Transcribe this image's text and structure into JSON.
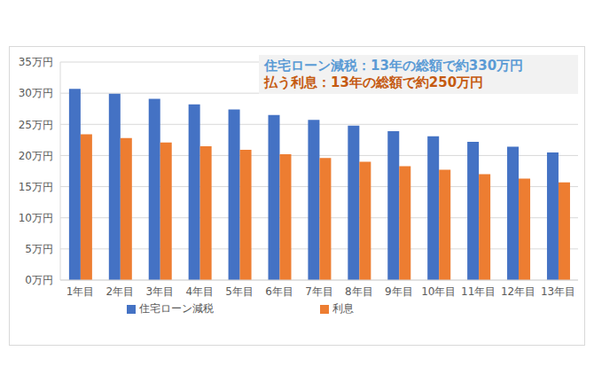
{
  "chart_data": {
    "type": "bar",
    "annotations": [
      "住宅ローン減税：13年の総額で約330万円",
      "払う利息：13年の総額で約250万円"
    ],
    "categories": [
      "1年目",
      "2年目",
      "3年目",
      "4年目",
      "5年目",
      "6年目",
      "7年目",
      "8年目",
      "9年目",
      "10年目",
      "11年目",
      "12年目",
      "13年目"
    ],
    "series": [
      {
        "name": "住宅ローン減税",
        "color": "#4472c4",
        "values": [
          30.7,
          29.9,
          29.1,
          28.2,
          27.4,
          26.5,
          25.7,
          24.8,
          23.9,
          23.1,
          22.2,
          21.4,
          20.5
        ]
      },
      {
        "name": "利息",
        "color": "#ed7d31",
        "values": [
          23.4,
          22.8,
          22.1,
          21.5,
          20.9,
          20.2,
          19.6,
          19.0,
          18.3,
          17.7,
          17.0,
          16.3,
          15.7
        ]
      }
    ],
    "ylim": [
      0,
      35
    ],
    "yticks": [
      {
        "value": 0,
        "label": "0万円"
      },
      {
        "value": 5,
        "label": "5万円"
      },
      {
        "value": 10,
        "label": "10万円"
      },
      {
        "value": 15,
        "label": "15万円"
      },
      {
        "value": 20,
        "label": "20万円"
      },
      {
        "value": 25,
        "label": "25万円"
      },
      {
        "value": 30,
        "label": "30万円"
      },
      {
        "value": 35,
        "label": "35万円"
      }
    ],
    "grid": true,
    "legend": "bottom"
  }
}
